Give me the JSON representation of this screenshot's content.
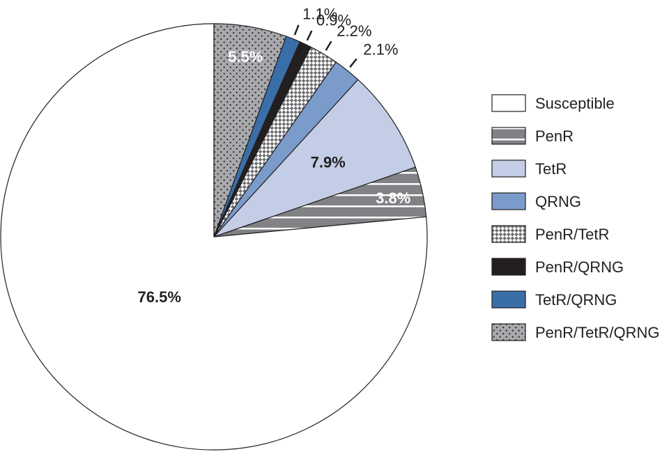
{
  "chart_data": {
    "type": "pie",
    "start": "top",
    "direction": "counterclockwise",
    "legend_position": "right",
    "slices": [
      {
        "name": "Susceptible",
        "value": 76.5,
        "label": "76.5%",
        "fill": "#ffffff",
        "pattern": "solid",
        "label_color": "#231f20",
        "label_weight": "bold"
      },
      {
        "name": "PenR",
        "value": 3.8,
        "label": "3.8%",
        "fill": "#808285",
        "pattern": "white-stripes",
        "label_color": "#ffffff",
        "label_weight": "bold"
      },
      {
        "name": "TetR",
        "value": 7.9,
        "label": "7.9%",
        "fill": "#c4cde6",
        "pattern": "solid",
        "label_color": "#231f20",
        "label_weight": "bold"
      },
      {
        "name": "QRNG",
        "value": 2.1,
        "label": "2.1%",
        "fill": "#7b9ccb",
        "pattern": "solid",
        "label_color": "#231f20",
        "label_weight": "normal"
      },
      {
        "name": "PenR/TetR",
        "value": 2.2,
        "label": "2.2%",
        "fill": "#ffffff",
        "pattern": "checker",
        "label_color": "#231f20",
        "label_weight": "normal"
      },
      {
        "name": "PenR/QRNG",
        "value": 0.9,
        "label": "0.9%",
        "fill": "#231f20",
        "pattern": "solid",
        "label_color": "#231f20",
        "label_weight": "normal"
      },
      {
        "name": "TetR/QRNG",
        "value": 1.1,
        "label": "1.1%",
        "fill": "#3a6ea8",
        "pattern": "solid",
        "label_color": "#231f20",
        "label_weight": "normal"
      },
      {
        "name": "PenR/TetR/QRNG",
        "value": 5.5,
        "label": "5.5%",
        "fill": "#a7a9ac",
        "pattern": "dots",
        "label_color": "#ffffff",
        "label_weight": "bold"
      }
    ]
  }
}
